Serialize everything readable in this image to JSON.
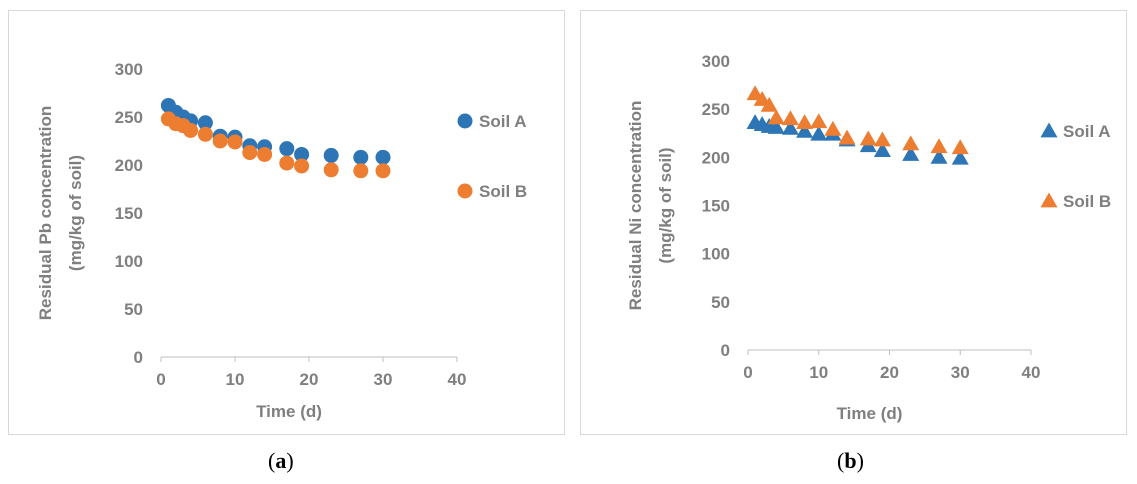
{
  "chart_data": [
    {
      "type": "scatter",
      "panel": "a",
      "caption_open": "(",
      "caption_letter": "a",
      "caption_close": ")",
      "ylabel_line1": "Residual Pb concentration",
      "ylabel_line2": "(mg/kg of soil)",
      "xlabel": "Time (d)",
      "xlim": [
        0,
        40
      ],
      "ylim": [
        0,
        300
      ],
      "xticks": [
        0,
        10,
        20,
        30,
        40
      ],
      "yticks": [
        0,
        50,
        100,
        150,
        200,
        250,
        300
      ],
      "marker": "circle",
      "legend_position": "right",
      "series": [
        {
          "name": "Soil A",
          "color": "#2e75b6",
          "x": [
            1,
            2,
            3,
            4,
            6,
            8,
            10,
            12,
            14,
            17,
            19,
            23,
            27,
            30
          ],
          "y": [
            262,
            255,
            250,
            246,
            244,
            230,
            229,
            220,
            219,
            217,
            211,
            210,
            208,
            208
          ]
        },
        {
          "name": "Soil B",
          "color": "#ed7d31",
          "x": [
            1,
            2,
            3,
            4,
            6,
            8,
            10,
            12,
            14,
            17,
            19,
            23,
            27,
            30
          ],
          "y": [
            248,
            243,
            241,
            236,
            232,
            225,
            224,
            213,
            211,
            202,
            199,
            195,
            194,
            194
          ]
        }
      ]
    },
    {
      "type": "scatter",
      "panel": "b",
      "caption_open": "(",
      "caption_letter": "b",
      "caption_close": ")",
      "ylabel_line1": "Residual Ni concentration",
      "ylabel_line2": "(mg/kg of soil)",
      "xlabel": "Time (d)",
      "xlim": [
        0,
        40
      ],
      "ylim": [
        0,
        300
      ],
      "xticks": [
        0,
        10,
        20,
        30,
        40
      ],
      "yticks": [
        0,
        50,
        100,
        150,
        200,
        250,
        300
      ],
      "marker": "triangle",
      "legend_position": "right",
      "series": [
        {
          "name": "Soil A",
          "color": "#2e75b6",
          "x": [
            1,
            2,
            3,
            4,
            6,
            8,
            10,
            12,
            14,
            17,
            19,
            23,
            27,
            30
          ],
          "y": [
            236,
            234,
            232,
            231,
            230,
            227,
            224,
            224,
            218,
            212,
            207,
            203,
            200,
            199
          ]
        },
        {
          "name": "Soil B",
          "color": "#ed7d31",
          "x": [
            1,
            2,
            3,
            4,
            6,
            8,
            10,
            12,
            14,
            17,
            19,
            23,
            27,
            30
          ],
          "y": [
            266,
            260,
            254,
            241,
            240,
            236,
            237,
            229,
            220,
            219,
            218,
            214,
            211,
            210
          ]
        }
      ]
    }
  ]
}
